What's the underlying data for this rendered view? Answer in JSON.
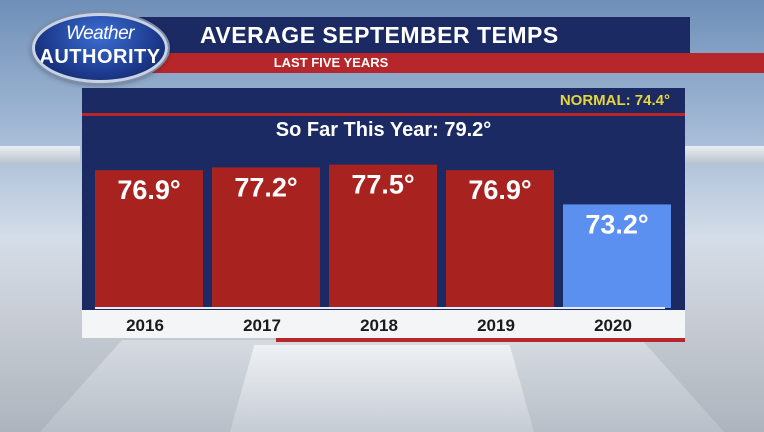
{
  "header": {
    "logo_line1": "Weather",
    "logo_line2": "AUTHORITY",
    "title": "AVERAGE SEPTEMBER TEMPS",
    "subtitle": "LAST FIVE YEARS"
  },
  "normal_label": "NORMAL: 74.4°",
  "so_far_label": "So Far This Year: 79.2°",
  "colors": {
    "above_normal": "#a8231f",
    "below_normal": "#5b8ff0",
    "navy": "#1b2a63",
    "accent_red": "#b7262a",
    "normal_text": "#e6d63a"
  },
  "chart_data": {
    "type": "bar",
    "title": "AVERAGE SEPTEMBER TEMPS",
    "subtitle": "LAST FIVE YEARS",
    "categories": [
      "2016",
      "2017",
      "2018",
      "2019",
      "2020"
    ],
    "values": [
      76.9,
      77.2,
      77.5,
      76.9,
      73.2
    ],
    "value_labels": [
      "76.9°",
      "77.2°",
      "77.5°",
      "76.9°",
      "73.2°"
    ],
    "bar_colors": [
      "#a8231f",
      "#a8231f",
      "#a8231f",
      "#a8231f",
      "#5b8ff0"
    ],
    "normal": 74.4,
    "so_far_this_year": 79.2,
    "unit": "°",
    "xlabel": "",
    "ylabel": "",
    "grid": false,
    "legend": "none"
  }
}
